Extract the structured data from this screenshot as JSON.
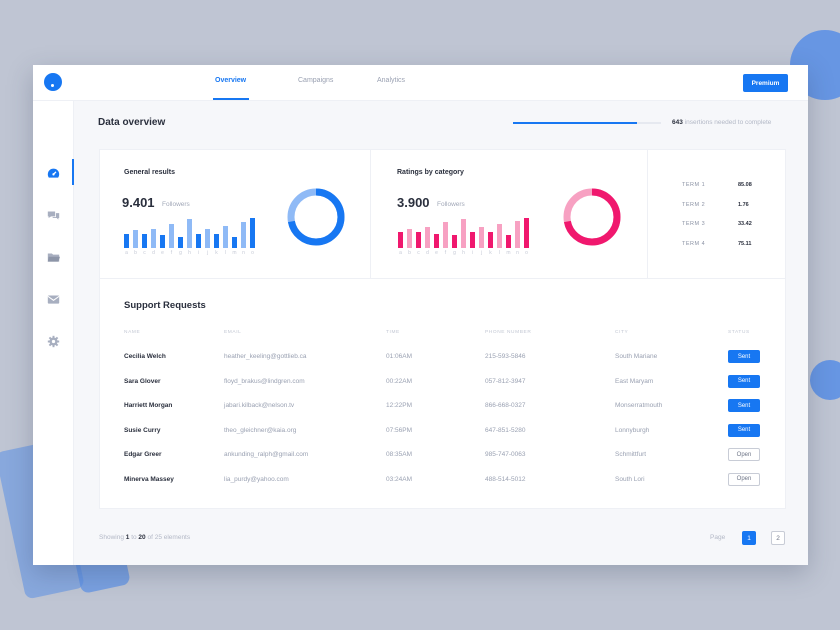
{
  "nav": {
    "tabs": [
      {
        "label": "Overview",
        "active": true
      },
      {
        "label": "Campaigns",
        "active": false
      },
      {
        "label": "Analytics",
        "active": false
      }
    ],
    "premium_label": "Premium"
  },
  "sidebar": {
    "items": [
      "dashboard-icon",
      "chat-icon",
      "folder-icon",
      "mail-icon",
      "gear-icon"
    ]
  },
  "overview": {
    "title": "Data overview",
    "progress": {
      "count": "643",
      "text": "insertions needed to complete",
      "fraction": 0.84
    }
  },
  "general_results": {
    "title": "General results",
    "value": "9.401",
    "unit": "Followers",
    "bars": [
      0.45,
      0.55,
      0.45,
      0.6,
      0.4,
      0.75,
      0.35,
      0.9,
      0.45,
      0.6,
      0.45,
      0.7,
      0.35,
      0.8,
      0.95
    ],
    "bar_labels": [
      "a",
      "b",
      "c",
      "d",
      "e",
      "f",
      "g",
      "h",
      "i",
      "j",
      "k",
      "l",
      "m",
      "n",
      "o"
    ],
    "donut_fraction": 0.72,
    "color_main": "#1777f2",
    "color_light": "#8fbaf6"
  },
  "ratings": {
    "title": "Ratings by category",
    "value": "3.900",
    "unit": "Followers",
    "bars": [
      0.5,
      0.6,
      0.5,
      0.65,
      0.45,
      0.8,
      0.4,
      0.9,
      0.5,
      0.65,
      0.5,
      0.75,
      0.4,
      0.85,
      0.95
    ],
    "bar_labels": [
      "a",
      "b",
      "c",
      "d",
      "e",
      "f",
      "g",
      "h",
      "i",
      "j",
      "k",
      "l",
      "m",
      "n",
      "o"
    ],
    "donut_fraction": 0.72,
    "color_main": "#f0186e",
    "color_light": "#f7a1c2"
  },
  "terms": [
    {
      "label": "TERM 1",
      "value": "85.08"
    },
    {
      "label": "TERM 2",
      "value": "1.76"
    },
    {
      "label": "TERM 3",
      "value": "33.42"
    },
    {
      "label": "TERM 4",
      "value": "75.11"
    }
  ],
  "support": {
    "title": "Support Requests",
    "columns": [
      "NAME",
      "EMAIL",
      "TIME",
      "PHONE NUMBER",
      "CITY",
      "STATUS"
    ],
    "rows": [
      {
        "name": "Cecilia Welch",
        "email": "heather_keeling@gottlieb.ca",
        "time": "01:06AM",
        "phone": "215-593-5846",
        "city": "South Mariane",
        "status": "Sent"
      },
      {
        "name": "Sara Glover",
        "email": "floyd_brakus@lindgren.com",
        "time": "00:22AM",
        "phone": "057-812-3947",
        "city": "East Maryam",
        "status": "Sent"
      },
      {
        "name": "Harriett Morgan",
        "email": "jabari.kilback@nelson.tv",
        "time": "12:22PM",
        "phone": "866-668-0327",
        "city": "Monserratmouth",
        "status": "Sent"
      },
      {
        "name": "Susie Curry",
        "email": "theo_gleichner@kaia.org",
        "time": "07:56PM",
        "phone": "647-851-5280",
        "city": "Lonnyburgh",
        "status": "Sent"
      },
      {
        "name": "Edgar Greer",
        "email": "ankunding_ralph@gmail.com",
        "time": "08:35AM",
        "phone": "985-747-0063",
        "city": "Schmittfurt",
        "status": "Open"
      },
      {
        "name": "Minerva Massey",
        "email": "lia_purdy@yahoo.com",
        "time": "03:24AM",
        "phone": "488-514-5012",
        "city": "South Lori",
        "status": "Open"
      }
    ]
  },
  "footer": {
    "showing_prefix": "Showing",
    "from": "1",
    "to_word": "to",
    "to": "20",
    "of_word": "of",
    "total": "25 elements",
    "page_label": "Page",
    "pages": [
      "1",
      "2"
    ]
  },
  "colors": {
    "accent": "#1777f2",
    "pink": "#f0186e"
  }
}
